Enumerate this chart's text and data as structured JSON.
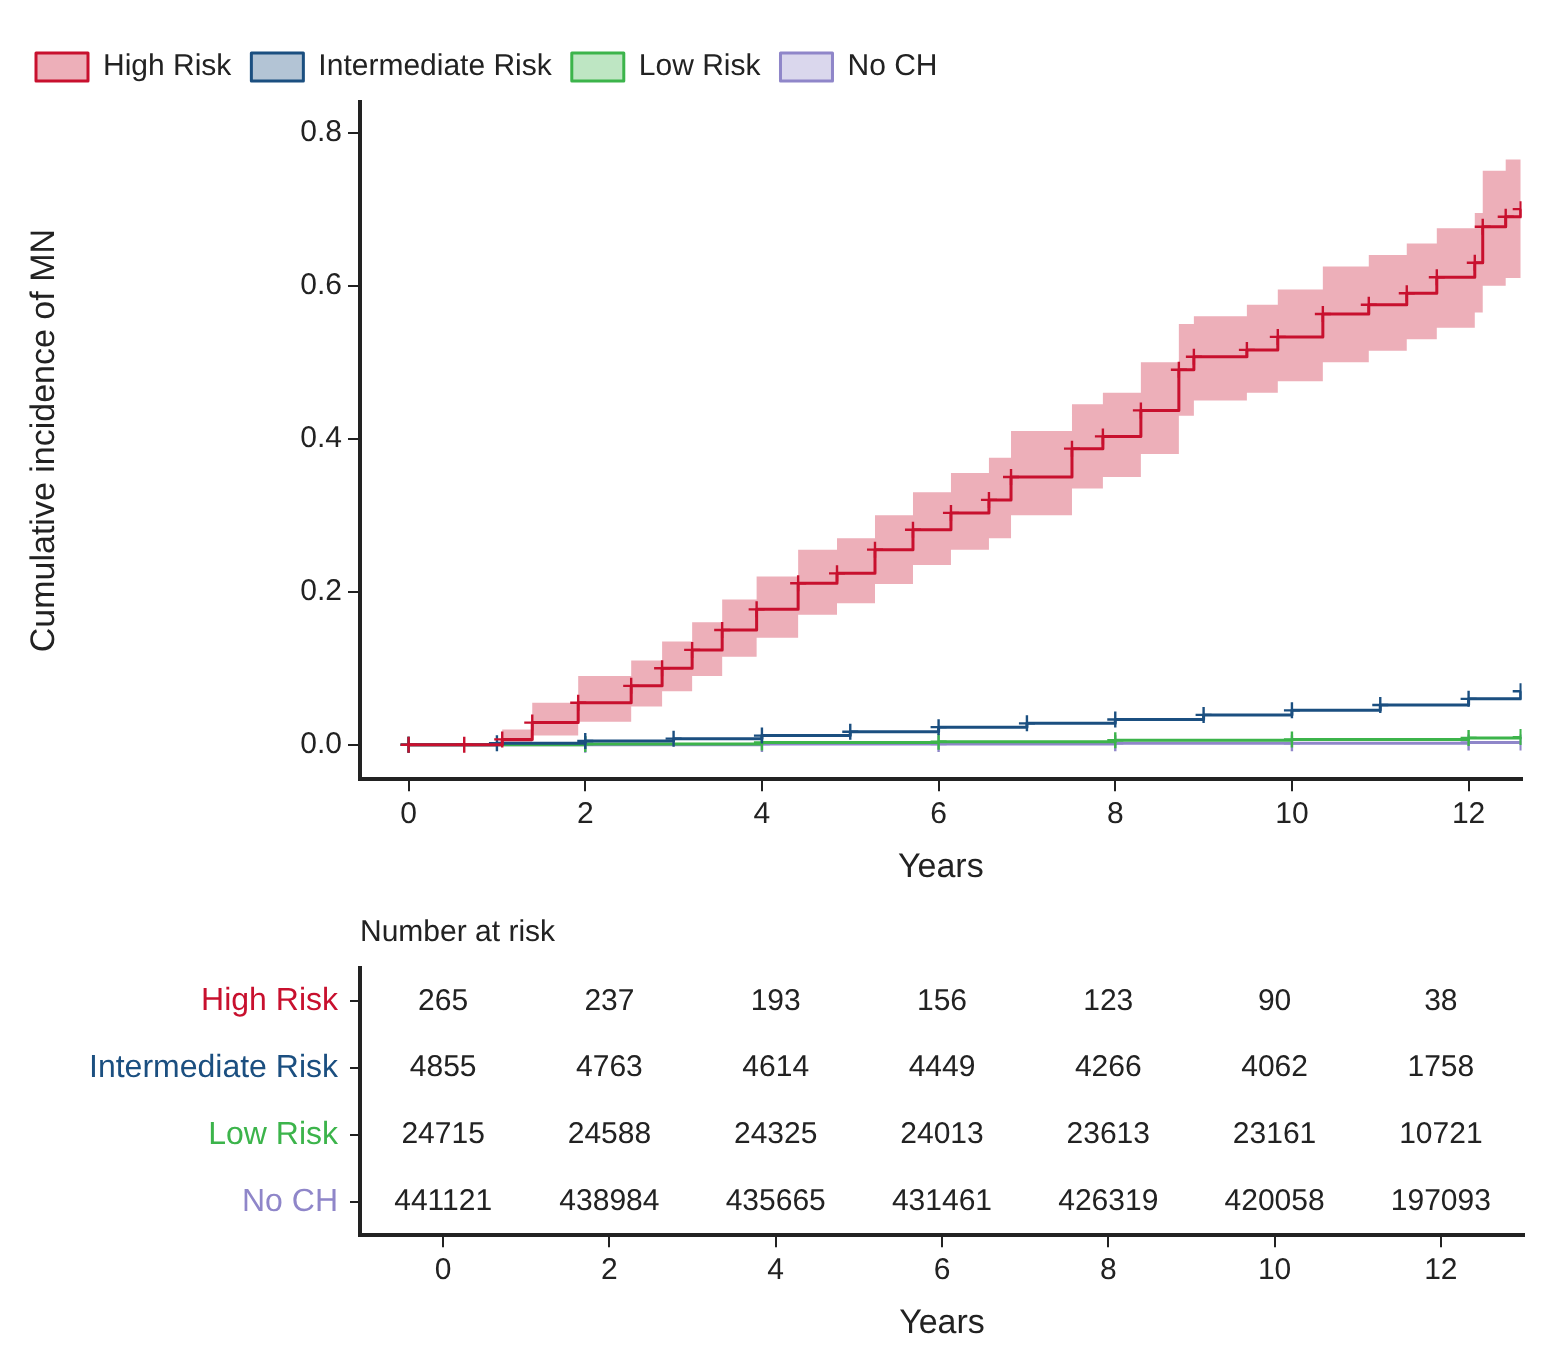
{
  "chart_data": [
    {
      "type": "step",
      "xlabel": "Years",
      "ylabel": "Cumulative incidence of MN",
      "xlim": [
        -0.55,
        12.6
      ],
      "xticks": [
        0,
        2,
        4,
        6,
        8,
        10,
        12
      ],
      "ylim": [
        -0.045,
        0.84
      ],
      "yticks": [
        {
          "value": 0,
          "label": "0.0"
        },
        {
          "value": 0.2,
          "label": "0.2"
        },
        {
          "value": 0.4,
          "label": "0.4"
        },
        {
          "value": 0.6,
          "label": "0.6"
        },
        {
          "value": 0.8,
          "label": "0.8"
        }
      ],
      "grid": false,
      "legend": "top left",
      "marker": "cross",
      "series": [
        {
          "name": "High Risk",
          "color": "#c8102e",
          "x": [
            0,
            0.63,
            1.06,
            1.4,
            1.92,
            2.52,
            2.87,
            3.21,
            3.55,
            3.94,
            4.41,
            4.85,
            5.28,
            5.71,
            6.14,
            6.57,
            6.82,
            7.51,
            7.86,
            8.29,
            8.72,
            8.89,
            9.49,
            9.84,
            10.35,
            10.87,
            11.3,
            11.64,
            12.07,
            12.16,
            12.42,
            12.59
          ],
          "values": [
            0,
            0,
            0.007,
            0.029,
            0.055,
            0.077,
            0.1,
            0.124,
            0.15,
            0.177,
            0.211,
            0.224,
            0.255,
            0.281,
            0.303,
            0.32,
            0.35,
            0.387,
            0.403,
            0.437,
            0.49,
            0.507,
            0.516,
            0.533,
            0.563,
            0.575,
            0.59,
            0.611,
            0.63,
            0.677,
            0.69,
            0.7
          ],
          "lower": [
            0,
            0,
            0,
            0.012,
            0.03,
            0.05,
            0.07,
            0.09,
            0.115,
            0.14,
            0.17,
            0.185,
            0.21,
            0.235,
            0.255,
            0.27,
            0.3,
            0.335,
            0.35,
            0.38,
            0.43,
            0.45,
            0.46,
            0.475,
            0.5,
            0.515,
            0.53,
            0.545,
            0.565,
            0.6,
            0.61,
            0.62
          ],
          "upper": [
            0,
            0,
            0.02,
            0.055,
            0.09,
            0.11,
            0.135,
            0.16,
            0.19,
            0.22,
            0.255,
            0.27,
            0.3,
            0.33,
            0.355,
            0.375,
            0.41,
            0.445,
            0.46,
            0.5,
            0.55,
            0.56,
            0.575,
            0.595,
            0.625,
            0.64,
            0.655,
            0.675,
            0.695,
            0.75,
            0.765,
            0.765
          ]
        },
        {
          "name": "Intermediate Risk",
          "color": "#1b4f80",
          "x": [
            0,
            1,
            2,
            3,
            4,
            5,
            6,
            7,
            8,
            9,
            10,
            11,
            12,
            12.59
          ],
          "values": [
            0,
            0.002,
            0.005,
            0.008,
            0.012,
            0.017,
            0.023,
            0.028,
            0.033,
            0.039,
            0.045,
            0.052,
            0.06,
            0.07
          ]
        },
        {
          "name": "Low Risk",
          "color": "#3cb44b",
          "x": [
            0,
            2,
            4,
            6,
            8,
            10,
            12,
            12.59
          ],
          "values": [
            0,
            0.001,
            0.003,
            0.004,
            0.006,
            0.007,
            0.009,
            0.01
          ]
        },
        {
          "name": "No CH",
          "color": "#8f86c9",
          "x": [
            0,
            2,
            4,
            6,
            8,
            10,
            12,
            12.59
          ],
          "values": [
            0,
            0,
            0.001,
            0.001,
            0.002,
            0.002,
            0.003,
            0.003
          ]
        }
      ]
    },
    {
      "type": "heatmap",
      "title": "Number at risk",
      "data_labels": true,
      "xlabel": "Years",
      "categories": [
        "0",
        "2",
        "4",
        "6",
        "8",
        "10",
        "12"
      ],
      "y_categories": [
        "High Risk",
        "Intermediate Risk",
        "Low Risk",
        "No CH"
      ],
      "cells": [
        [
          265,
          237,
          193,
          156,
          123,
          90,
          38
        ],
        [
          4855,
          4763,
          4614,
          4449,
          4266,
          4062,
          1758
        ],
        [
          24715,
          24588,
          24325,
          24013,
          23613,
          23161,
          10721
        ],
        [
          441121,
          438984,
          435665,
          431461,
          426319,
          420058,
          197093
        ]
      ]
    }
  ]
}
